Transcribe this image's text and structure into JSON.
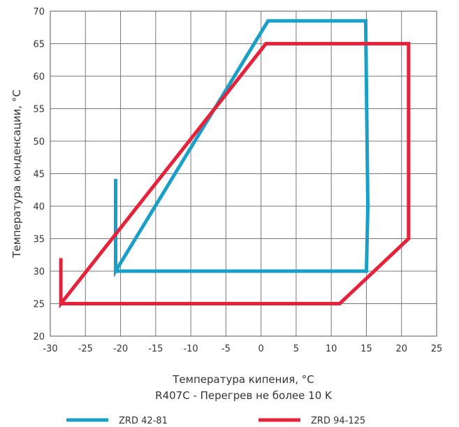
{
  "chart_data": {
    "type": "line",
    "title": "",
    "xlabel": "Температура кипения, °C",
    "ylabel": "Температура конденсации, °C",
    "subtitle": "R407C - Перегрев не более 10 K",
    "xlim": [
      -30,
      25
    ],
    "ylim": [
      20,
      70
    ],
    "xticks": [
      -30,
      -25,
      -20,
      -15,
      -10,
      -5,
      0,
      5,
      10,
      15,
      20,
      25
    ],
    "yticks": [
      20,
      25,
      30,
      35,
      40,
      45,
      50,
      55,
      60,
      65,
      70
    ],
    "grid": true,
    "legend_position": "bottom",
    "series": [
      {
        "name": "ZRD 42-81",
        "color": "#1aa0c8",
        "x": [
          -20.7,
          -20.7,
          1,
          14.9,
          15.2,
          15,
          -20.7
        ],
        "y": [
          44.2,
          30,
          68.5,
          68.5,
          40,
          30,
          30
        ]
      },
      {
        "name": "ZRD 94-125",
        "color": "#e8213a",
        "x": [
          -28.5,
          -28.5,
          0.7,
          21,
          21,
          11.2,
          -28.5
        ],
        "y": [
          32,
          25,
          65,
          65,
          35,
          25,
          25
        ]
      }
    ]
  }
}
